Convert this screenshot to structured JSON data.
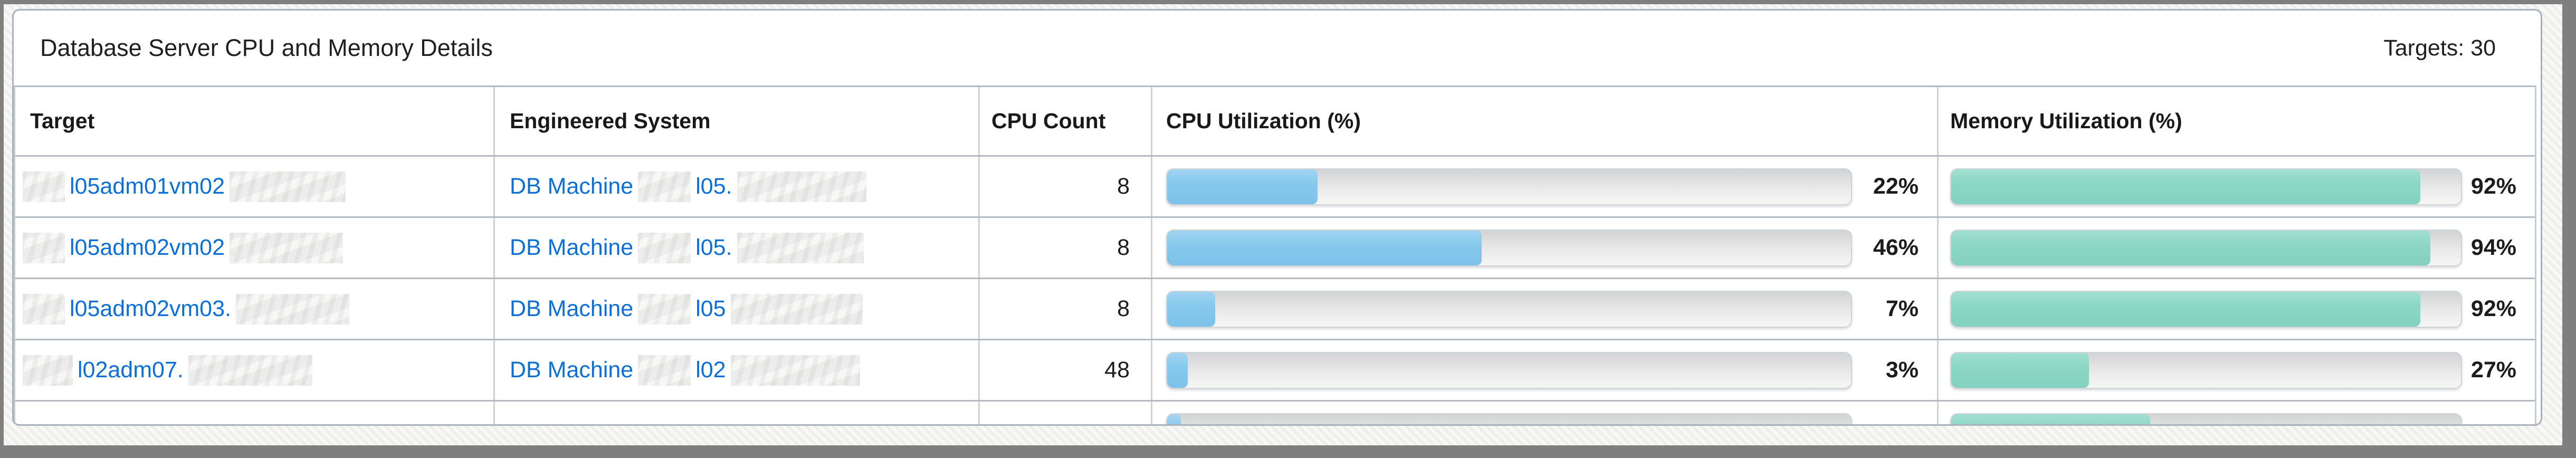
{
  "panel": {
    "title": "Database Server CPU and Memory Details",
    "targets_label": "Targets: 30"
  },
  "table": {
    "headers": {
      "target": "Target",
      "engineered_system": "Engineered System",
      "cpu_count": "CPU Count",
      "cpu_utilization": "CPU Utilization (%)",
      "memory_utilization": "Memory Utilization (%)"
    },
    "rows": [
      {
        "target": [
          {
            "redacted_width": 80
          },
          {
            "text": "l05adm01vm02"
          },
          {
            "redacted_width": 220
          }
        ],
        "engineered_system": [
          {
            "text": "DB Machine"
          },
          {
            "redacted_width": 100
          },
          {
            "text": "l05."
          },
          {
            "redacted_width": 245
          }
        ],
        "cpu_count": "8",
        "cpu_pct": 22,
        "cpu_label": "22%",
        "mem_pct": 92,
        "mem_label": "92%"
      },
      {
        "target": [
          {
            "redacted_width": 80
          },
          {
            "text": "l05adm02vm02"
          },
          {
            "redacted_width": 215
          }
        ],
        "engineered_system": [
          {
            "text": "DB Machine"
          },
          {
            "redacted_width": 100
          },
          {
            "text": "l05."
          },
          {
            "redacted_width": 240
          }
        ],
        "cpu_count": "8",
        "cpu_pct": 46,
        "cpu_label": "46%",
        "mem_pct": 94,
        "mem_label": "94%"
      },
      {
        "target": [
          {
            "redacted_width": 80
          },
          {
            "text": "l05adm02vm03."
          },
          {
            "redacted_width": 215
          }
        ],
        "engineered_system": [
          {
            "text": "DB Machine"
          },
          {
            "redacted_width": 100
          },
          {
            "text": "l05"
          },
          {
            "redacted_width": 250
          }
        ],
        "cpu_count": "8",
        "cpu_pct": 7,
        "cpu_label": "7%",
        "mem_pct": 92,
        "mem_label": "92%"
      },
      {
        "target": [
          {
            "redacted_width": 95
          },
          {
            "text": "l02adm07."
          },
          {
            "redacted_width": 235
          }
        ],
        "engineered_system": [
          {
            "text": "DB Machine"
          },
          {
            "redacted_width": 100
          },
          {
            "text": "l02"
          },
          {
            "redacted_width": 245
          }
        ],
        "cpu_count": "48",
        "cpu_pct": 3,
        "cpu_label": "3%",
        "mem_pct": 27,
        "mem_label": "27%"
      },
      {
        "partial": true,
        "target": [],
        "engineered_system": [],
        "cpu_count": "",
        "cpu_pct": 2,
        "cpu_label": "",
        "mem_pct": 39,
        "mem_label": ""
      }
    ]
  },
  "colors": {
    "link": "#0b6fd6",
    "cpu_bar_fill": "#84c6ea",
    "memory_bar_fill": "#8bd5c3",
    "bar_track": "#e9e9e9",
    "row_border": "#b3bac1",
    "column_border": "#cdd1d4",
    "panel_border": "#a8b2ba",
    "outer_frame": "#7f7f7f",
    "text": "#1c1c1c"
  }
}
